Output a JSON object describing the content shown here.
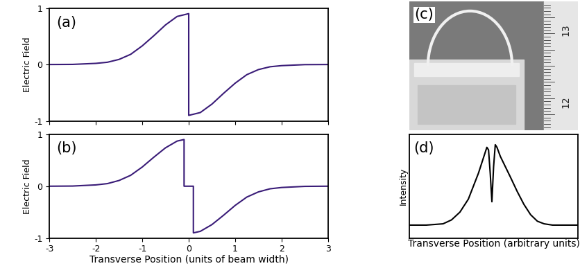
{
  "chart_data": [
    {
      "type": "line",
      "panel_label": "(a)",
      "ylabel": "Electric Field",
      "x": [
        -3,
        -2.5,
        -2,
        -1.75,
        -1.5,
        -1.25,
        -1,
        -0.75,
        -0.5,
        -0.25,
        0,
        0,
        0.25,
        0.5,
        0.75,
        1,
        1.25,
        1.5,
        1.75,
        2,
        2.5,
        3
      ],
      "values": [
        0,
        0.002,
        0.02,
        0.04,
        0.09,
        0.18,
        0.33,
        0.51,
        0.7,
        0.85,
        0.9,
        -0.9,
        -0.85,
        -0.7,
        -0.51,
        -0.33,
        -0.18,
        -0.09,
        -0.04,
        -0.02,
        -0.002,
        0
      ],
      "color": "#3a1c78",
      "xlim": [
        -3,
        3
      ],
      "ylim": [
        -1,
        1
      ],
      "xticks": [
        -3,
        -2,
        -1,
        0,
        1,
        2,
        3
      ],
      "yticks": [
        -1,
        0,
        1
      ],
      "tick_labels": "y"
    },
    {
      "type": "line",
      "panel_label": "(b)",
      "ylabel": "Electric Field",
      "xlabel": "Transverse Position (units of beam width)",
      "x": [
        -3,
        -2.5,
        -2,
        -1.75,
        -1.5,
        -1.25,
        -1,
        -0.75,
        -0.5,
        -0.25,
        -0.1,
        -0.1,
        0.1,
        0.1,
        0.25,
        0.5,
        0.75,
        1,
        1.25,
        1.5,
        1.75,
        2,
        2.5,
        3
      ],
      "values": [
        0,
        0.003,
        0.025,
        0.05,
        0.11,
        0.21,
        0.37,
        0.56,
        0.74,
        0.87,
        0.9,
        0,
        0,
        -0.9,
        -0.87,
        -0.74,
        -0.56,
        -0.37,
        -0.21,
        -0.11,
        -0.05,
        -0.025,
        -0.003,
        0
      ],
      "color": "#3a1c78",
      "xlim": [
        -3,
        3
      ],
      "ylim": [
        -1,
        1
      ],
      "xticks": [
        -3,
        -2,
        -1,
        0,
        1,
        2,
        3
      ],
      "yticks": [
        -1,
        0,
        1
      ]
    },
    {
      "type": "image",
      "panel_label": "(c)",
      "texts": [
        "13",
        "12"
      ]
    },
    {
      "type": "line",
      "panel_label": "(d)",
      "ylabel": "Intensity",
      "xlabel": "Transverse Position (arbitrary units)",
      "x": [
        0,
        10,
        20,
        25,
        30,
        35,
        38,
        41,
        44,
        46,
        47,
        48,
        49,
        50,
        51,
        52,
        54,
        57,
        60,
        64,
        68,
        72,
        76,
        80,
        85,
        90,
        100
      ],
      "values": [
        0.1,
        0.1,
        0.11,
        0.14,
        0.2,
        0.3,
        0.4,
        0.5,
        0.62,
        0.7,
        0.68,
        0.5,
        0.28,
        0.55,
        0.72,
        0.7,
        0.63,
        0.55,
        0.47,
        0.36,
        0.26,
        0.18,
        0.13,
        0.11,
        0.1,
        0.1,
        0.1
      ],
      "color": "#000000",
      "xlim": [
        0,
        100
      ],
      "ylim": [
        0,
        0.8
      ],
      "tick_labels": false
    }
  ]
}
